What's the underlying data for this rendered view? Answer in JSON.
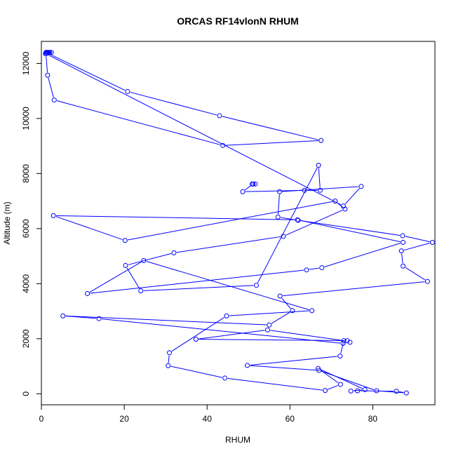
{
  "chart_data": {
    "type": "line",
    "title": "ORCAS RF14vlonN RHUM",
    "xlabel": "RHUM",
    "ylabel": "Altitude (m)",
    "xlim": [
      0,
      95
    ],
    "ylim": [
      -400,
      12800
    ],
    "xticks": [
      0,
      20,
      40,
      60,
      80
    ],
    "yticks": [
      0,
      2000,
      4000,
      6000,
      8000,
      10000,
      12000
    ],
    "grid": false,
    "legend": "none",
    "colors": {
      "series": "#0000FF",
      "axis": "#000000"
    },
    "series": [
      {
        "marker": "open-circle",
        "x": [
          1.6,
          1.3,
          1.5,
          2.0,
          1.2,
          1.0,
          1.8,
          2.4,
          1.1,
          20.8,
          43.0,
          67.5,
          43.8,
          3.1,
          1.5,
          1.1,
          72.9,
          77.2,
          57.5,
          57.1,
          62.0,
          87.2,
          94.4,
          86.9,
          87.3,
          93.2,
          57.6,
          60.6,
          55.0,
          5.2,
          13.9,
          72.8,
          74.5,
          73.8,
          37.3,
          54.6,
          73.0,
          72.1,
          49.7,
          67.0,
          80.9,
          88.1,
          85.7,
          76.3,
          74.7,
          78.1,
          66.8,
          72.2,
          68.5,
          44.3,
          30.6,
          30.9,
          44.7,
          65.3,
          24.7,
          11.1,
          64.0,
          67.7,
          87.3,
          61.8,
          2.9,
          20.2,
          70.9,
          73.3,
          58.4,
          32.0,
          20.3,
          24.0,
          51.9,
          66.9,
          67.3,
          63.5,
          48.6,
          51.1,
          51.6,
          50.9
        ],
        "y": [
          12400,
          12400,
          12400,
          12400,
          12400,
          12350,
          12400,
          12400,
          12400,
          10980,
          10100,
          9200,
          9020,
          10670,
          11570,
          12350,
          6820,
          7530,
          7340,
          6420,
          6300,
          5740,
          5500,
          5190,
          4640,
          4080,
          3550,
          3020,
          2500,
          2830,
          2730,
          1830,
          1870,
          1930,
          1980,
          2320,
          1930,
          1370,
          1030,
          850,
          110,
          30,
          90,
          110,
          100,
          150,
          920,
          340,
          120,
          570,
          1020,
          1490,
          2830,
          3020,
          4840,
          3640,
          4500,
          4580,
          5500,
          6320,
          6470,
          5570,
          7000,
          6710,
          5720,
          5120,
          4660,
          3740,
          3940,
          8300,
          7390,
          7390,
          7340,
          7620,
          7620,
          7620
        ]
      }
    ]
  }
}
